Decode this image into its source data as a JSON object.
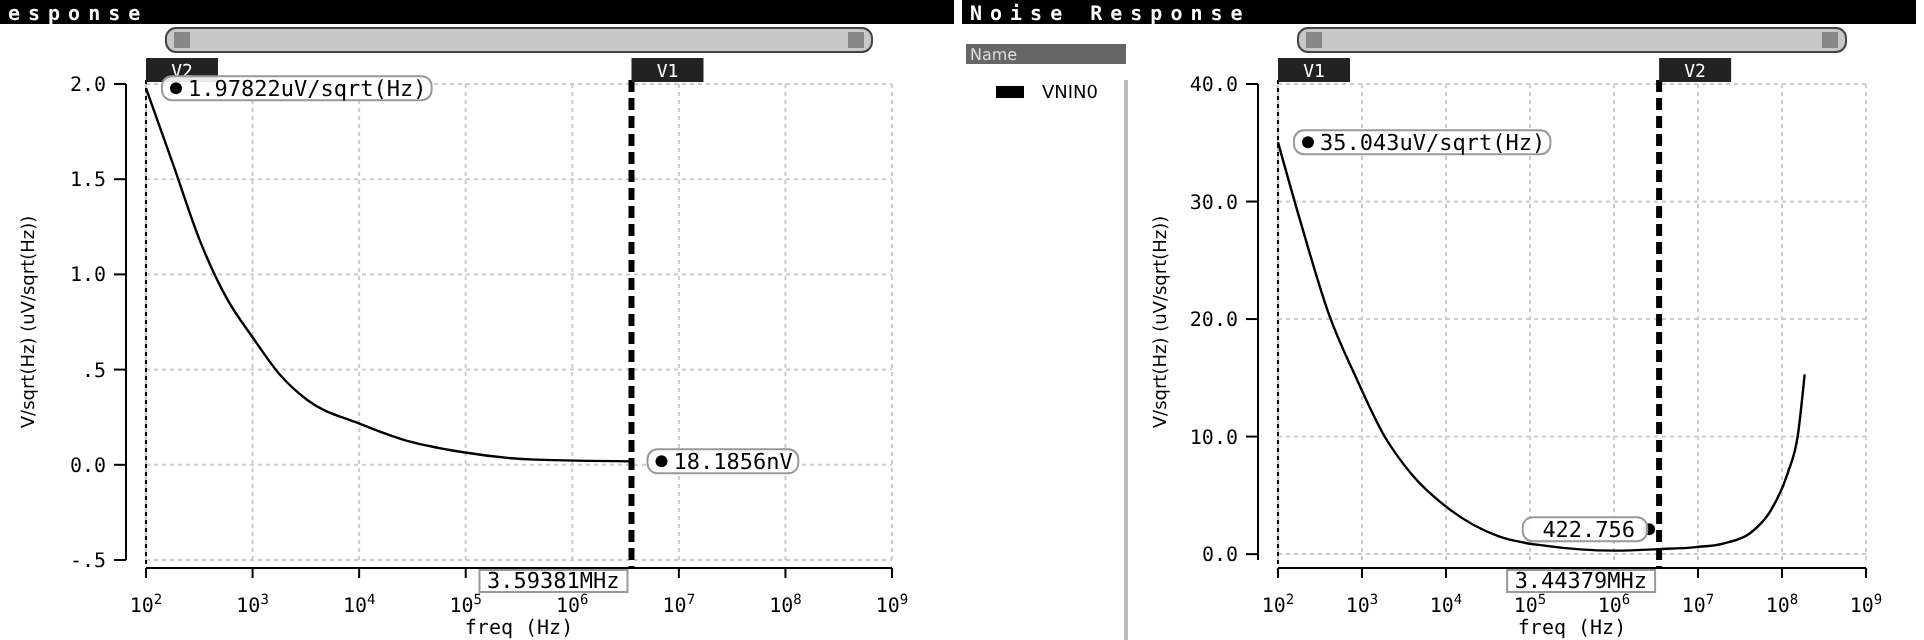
{
  "chart_data": [
    {
      "type": "line",
      "title": "esponse",
      "xlabel": "freq (Hz)",
      "ylabel": "V/sqrt(Hz) (uV/sqrt(Hz))",
      "log": "x",
      "grid": true,
      "xlim": [
        100,
        1000000000
      ],
      "ylim": [
        -0.5,
        2.0
      ],
      "xticks": [
        {
          "value": 100,
          "label": "10$^{2}$"
        },
        {
          "value": 1000,
          "label": "10$^{3}$"
        },
        {
          "value": 10000,
          "label": "10$^{4}$"
        },
        {
          "value": 100000,
          "label": "10$^{5}$"
        },
        {
          "value": 1000000,
          "label": "10$^{6}$"
        },
        {
          "value": 10000000,
          "label": "10$^{7}$"
        },
        {
          "value": 100000000,
          "label": "10$^{8}$"
        },
        {
          "value": 1000000000,
          "label": "10$^{9}$"
        }
      ],
      "yticks": [
        {
          "value": -0.5,
          "label": "-.5"
        },
        {
          "value": 0,
          "label": "0.0"
        },
        {
          "value": 0.5,
          "label": ".5"
        },
        {
          "value": 1,
          "label": "1.0"
        },
        {
          "value": 1.5,
          "label": "1.5"
        },
        {
          "value": 2,
          "label": "2.0"
        }
      ],
      "series": [
        {
          "color": "#000000",
          "x": [
            100,
            179,
            319,
            571,
            1000,
            1824,
            3260,
            9680,
            24900,
            91800,
            454000,
            3593810
          ],
          "values": [
            1.97822,
            1.58,
            1.18,
            0.875,
            0.67,
            0.47,
            0.34,
            0.22,
            0.135,
            0.067,
            0.027,
            0.0181856
          ]
        }
      ],
      "ref_lines": [
        {
          "axis": "x",
          "value": 100,
          "label": "V2",
          "line_style": "dotted"
        },
        {
          "axis": "x",
          "value": 3593810,
          "label": "V1",
          "line_style": "dashed"
        }
      ],
      "annotations": [
        {
          "text": "1.97822uV/sqrt(Hz)",
          "x": 100,
          "y": 1.97822
        },
        {
          "text": "18.1856nV",
          "x": 3593810,
          "y": 0.0181856
        },
        {
          "text": "3.59381MHz",
          "x": 3593810,
          "y": -0.5
        }
      ]
    },
    {
      "type": "line",
      "title": "Noise Response",
      "xlabel": "freq (Hz)",
      "ylabel": "V/sqrt(Hz) (uV/sqrt(Hz))",
      "log": "x",
      "grid": true,
      "legend": "left",
      "legend_title": "Name",
      "xlim": [
        100,
        1000000000
      ],
      "ylim": [
        -0.5,
        40
      ],
      "xticks": [
        {
          "value": 100,
          "label": "10$^{2}$"
        },
        {
          "value": 1000,
          "label": "10$^{3}$"
        },
        {
          "value": 10000,
          "label": "10$^{4}$"
        },
        {
          "value": 100000,
          "label": "10$^{5}$"
        },
        {
          "value": 1000000,
          "label": "10$^{6}$"
        },
        {
          "value": 10000000,
          "label": "10$^{7}$"
        },
        {
          "value": 100000000,
          "label": "10$^{8}$"
        },
        {
          "value": 1000000000,
          "label": "10$^{9}$"
        }
      ],
      "yticks": [
        {
          "value": 0,
          "label": "0.0"
        },
        {
          "value": 10,
          "label": "10.0"
        },
        {
          "value": 20,
          "label": "20.0"
        },
        {
          "value": 30,
          "label": "30.0"
        },
        {
          "value": 40,
          "label": "40.0"
        }
      ],
      "series": [
        {
          "name": "VNIN0",
          "color": "#000000",
          "x": [
            100,
            192,
            404,
            851,
            1795,
            3785,
            11560,
            42600,
            157000,
            1010000,
            3443790,
            9460000,
            19900000,
            42000000,
            73400000,
            117000000,
            155000000,
            186000000
          ],
          "values": [
            35.043,
            27.9,
            20.4,
            15.0,
            10.2,
            6.9,
            3.7,
            1.5,
            0.7,
            0.3,
            0.422756,
            0.6,
            0.9,
            1.8,
            3.7,
            6.9,
            10.2,
            15.3
          ]
        }
      ],
      "ref_lines": [
        {
          "axis": "x",
          "value": 100,
          "label": "V1",
          "line_style": "dotted"
        },
        {
          "axis": "x",
          "value": 3443790,
          "label": "V2",
          "line_style": "dashed"
        }
      ],
      "annotations": [
        {
          "text": "35.043uV/sqrt(Hz)",
          "x": 100,
          "y": 35.043
        },
        {
          "text": "422.756",
          "x": 3443790,
          "y": 0.422756
        },
        {
          "text": "3.44379MHz",
          "x": 3443790,
          "y": -0.5
        }
      ]
    }
  ]
}
